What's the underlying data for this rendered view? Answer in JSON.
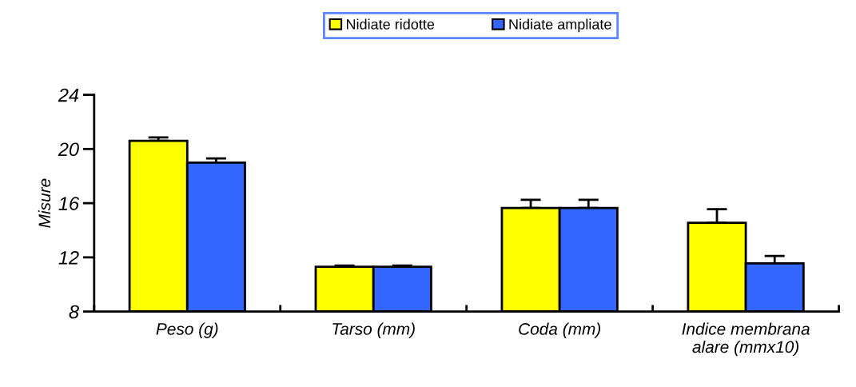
{
  "chart_data": {
    "type": "bar",
    "ylabel": "Misure",
    "categories": [
      "Peso (g)",
      "Tarso (mm)",
      "Coda (mm)",
      "Indice membrana\nalare (mmx10)"
    ],
    "series": [
      {
        "name": "Nidiate ridotte",
        "color": "#ffff00",
        "values": [
          20.6,
          11.3,
          15.65,
          14.55
        ],
        "errors": [
          0.25,
          0.1,
          0.6,
          1.0
        ]
      },
      {
        "name": "Nidiate ampliate",
        "color": "#3366ff",
        "values": [
          19.0,
          11.3,
          15.65,
          11.55
        ],
        "errors": [
          0.3,
          0.1,
          0.6,
          0.55
        ]
      }
    ],
    "ylim": [
      8,
      24
    ],
    "yticks": [
      8,
      12,
      16,
      20,
      24
    ],
    "grid": false,
    "legend": "top"
  }
}
